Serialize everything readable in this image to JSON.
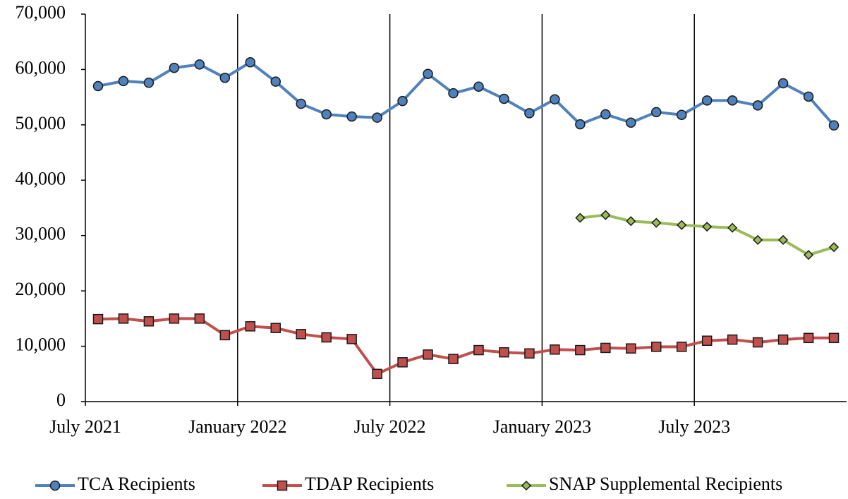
{
  "chart_data": {
    "type": "line",
    "categories": [
      "July 2021",
      null,
      null,
      null,
      null,
      null,
      "January 2022",
      null,
      null,
      null,
      null,
      null,
      "July 2022",
      null,
      null,
      null,
      null,
      null,
      "January 2023",
      null,
      null,
      null,
      null,
      null,
      "July 2023",
      null,
      null,
      null,
      null,
      null
    ],
    "series": [
      {
        "name": "TCA Recipients",
        "color": "#4f81bd",
        "marker": "circle",
        "values": [
          57000,
          57900,
          57600,
          60300,
          60900,
          58500,
          61300,
          57800,
          53800,
          51900,
          51500,
          51300,
          54300,
          59200,
          55700,
          56900,
          54700,
          52100,
          54600,
          50100,
          51900,
          50400,
          52300,
          51800,
          54400,
          54400,
          53500,
          57500,
          55100,
          49900
        ]
      },
      {
        "name": "TDAP Recipients",
        "color": "#c0504d",
        "marker": "square",
        "values": [
          14900,
          15000,
          14500,
          15000,
          15000,
          12000,
          13600,
          13300,
          12200,
          11600,
          11300,
          5000,
          7100,
          8500,
          7700,
          9300,
          8900,
          8700,
          9400,
          9300,
          9700,
          9600,
          9900,
          9900,
          11000,
          11200,
          10700,
          11200,
          11500,
          11500
        ]
      },
      {
        "name": "SNAP Supplemental Recipients",
        "color": "#9bbb59",
        "marker": "diamond",
        "values": [
          null,
          null,
          null,
          null,
          null,
          null,
          null,
          null,
          null,
          null,
          null,
          null,
          null,
          null,
          null,
          null,
          null,
          null,
          null,
          33200,
          33700,
          32600,
          32300,
          31900,
          31600,
          31400,
          29200,
          29200,
          26500,
          27900
        ]
      }
    ],
    "ylim": [
      0,
      70000
    ],
    "yticks": [
      0,
      {
        "value": 10000,
        "label": "10,000"
      },
      {
        "value": 20000,
        "label": "20,000"
      },
      {
        "value": 30000,
        "label": "30,000"
      },
      {
        "value": 40000,
        "label": "40,000"
      },
      {
        "value": 50000,
        "label": "50,000"
      },
      {
        "value": 60000,
        "label": "60,000"
      },
      {
        "value": 70000,
        "label": "70,000"
      }
    ],
    "grid": "x",
    "legend": "bottom"
  }
}
